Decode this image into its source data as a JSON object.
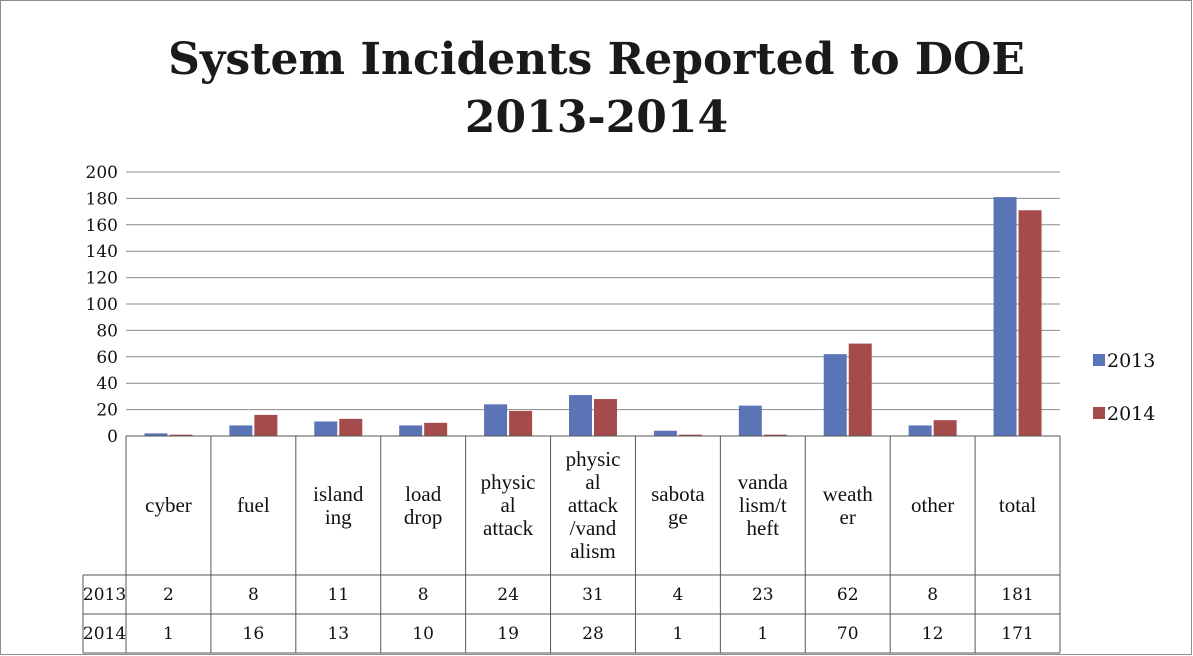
{
  "chart_data": {
    "type": "bar",
    "title": "System Incidents Reported to DOE",
    "subtitle": "2013-2014",
    "categories": [
      "cyber",
      "fuel",
      "islanding",
      "load drop",
      "physical attack",
      "physical attack/vandalism",
      "sabotage",
      "vandalism/theft",
      "weather",
      "other",
      "total"
    ],
    "category_labels": [
      "cyber",
      "fuel",
      "island ing",
      "load drop",
      "physic al attack",
      "physic al attack /vand alism",
      "sabota ge",
      "vanda lism/t heft",
      "weath er",
      "other",
      "total"
    ],
    "series": [
      {
        "name": "2013",
        "values": [
          2,
          8,
          11,
          8,
          24,
          31,
          4,
          23,
          62,
          8,
          181
        ],
        "color": "#5b74b5"
      },
      {
        "name": "2014",
        "values": [
          1,
          16,
          13,
          10,
          19,
          28,
          1,
          1,
          70,
          12,
          171
        ],
        "color": "#a54b4b"
      }
    ],
    "yticks": [
      "0",
      "20",
      "40",
      "60",
      "80",
      "100",
      "120",
      "140",
      "160",
      "180",
      "200"
    ],
    "ylim": [
      0,
      200
    ],
    "grid": true,
    "legend": "right",
    "data_table": true
  }
}
